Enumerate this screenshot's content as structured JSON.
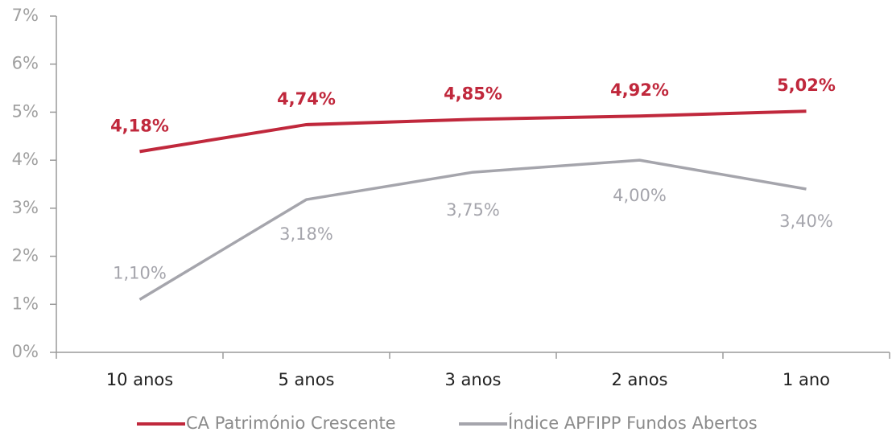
{
  "chart_data": {
    "type": "line",
    "categories": [
      "10 anos",
      "5 anos",
      "3 anos",
      "2 anos",
      "1 ano"
    ],
    "series": [
      {
        "name": "CA Património Crescente",
        "color": "#c0283c",
        "values": [
          4.18,
          4.74,
          4.85,
          4.92,
          5.02
        ],
        "value_labels": [
          "4,18%",
          "4,74%",
          "4,85%",
          "4,92%",
          "5,02%"
        ]
      },
      {
        "name": "Índice APFIPP Fundos Abertos",
        "color": "#a5a5ac",
        "values": [
          1.1,
          3.18,
          3.75,
          4.0,
          3.4
        ],
        "value_labels": [
          "1,10%",
          "3,18%",
          "3,75%",
          "4,00%",
          "3,40%"
        ]
      }
    ],
    "ylim": [
      0,
      7
    ],
    "yticks": [
      {
        "value": 0,
        "label": "0%"
      },
      {
        "value": 1,
        "label": "1%"
      },
      {
        "value": 2,
        "label": "2%"
      },
      {
        "value": 3,
        "label": "3%"
      },
      {
        "value": 4,
        "label": "4%"
      },
      {
        "value": 5,
        "label": "5%"
      },
      {
        "value": 6,
        "label": "6%"
      },
      {
        "value": 7,
        "label": "7%"
      }
    ],
    "legend": "bottom"
  }
}
